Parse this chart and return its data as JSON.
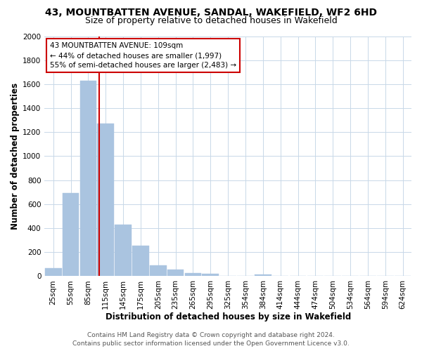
{
  "title": "43, MOUNTBATTEN AVENUE, SANDAL, WAKEFIELD, WF2 6HD",
  "subtitle": "Size of property relative to detached houses in Wakefield",
  "xlabel": "Distribution of detached houses by size in Wakefield",
  "ylabel": "Number of detached properties",
  "bar_labels": [
    "25sqm",
    "55sqm",
    "85sqm",
    "115sqm",
    "145sqm",
    "175sqm",
    "205sqm",
    "235sqm",
    "265sqm",
    "295sqm",
    "325sqm",
    "354sqm",
    "384sqm",
    "414sqm",
    "444sqm",
    "474sqm",
    "504sqm",
    "534sqm",
    "564sqm",
    "594sqm",
    "624sqm"
  ],
  "bar_values": [
    65,
    690,
    1630,
    1270,
    430,
    255,
    88,
    52,
    28,
    20,
    0,
    0,
    15,
    0,
    0,
    0,
    0,
    0,
    0,
    0,
    0
  ],
  "bar_color": "#aac4e0",
  "bar_edge_color": "#aac4e0",
  "vline_color": "#cc0000",
  "ylim": [
    0,
    2000
  ],
  "yticks": [
    0,
    200,
    400,
    600,
    800,
    1000,
    1200,
    1400,
    1600,
    1800,
    2000
  ],
  "annotation_title": "43 MOUNTBATTEN AVENUE: 109sqm",
  "annotation_line1": "← 44% of detached houses are smaller (1,997)",
  "annotation_line2": "55% of semi-detached houses are larger (2,483) →",
  "annotation_box_color": "#ffffff",
  "annotation_box_edge": "#cc0000",
  "footer1": "Contains HM Land Registry data © Crown copyright and database right 2024.",
  "footer2": "Contains public sector information licensed under the Open Government Licence v3.0.",
  "background_color": "#ffffff",
  "grid_color": "#c8d8e8",
  "title_fontsize": 10,
  "subtitle_fontsize": 9,
  "axis_label_fontsize": 8.5,
  "tick_fontsize": 7.5,
  "footer_fontsize": 6.5,
  "vline_xdata": 2.633
}
